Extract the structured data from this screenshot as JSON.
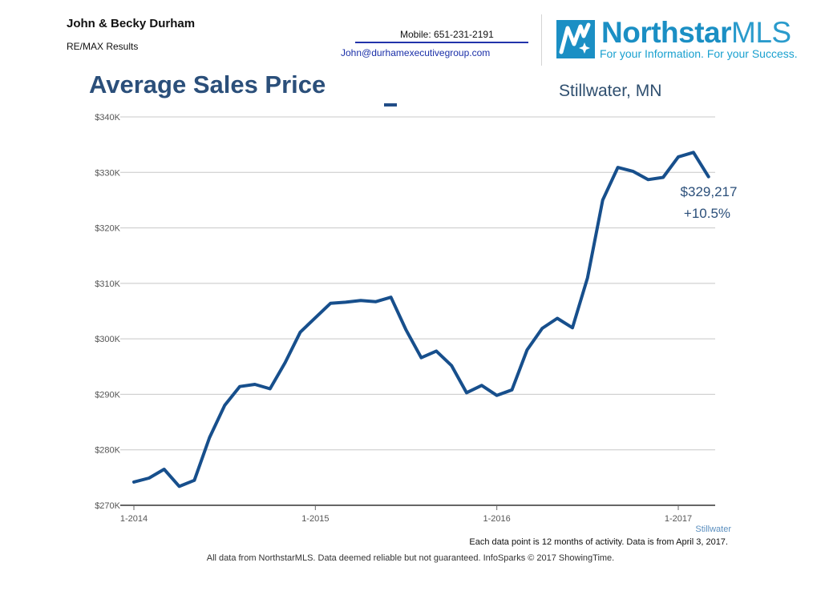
{
  "header": {
    "agent_name": "John & Becky Durham",
    "brokerage": "RE/MAX Results",
    "mobile": "Mobile: 651-231-2191",
    "email": "John@durhamexecutivegroup.com"
  },
  "logo": {
    "name_main": "Northstar",
    "name_suffix": "MLS",
    "tagline": "For your Information. For your Success."
  },
  "chart_data": {
    "type": "line",
    "title": "Average Sales Price",
    "subtitle": "Stillwater, MN",
    "ylim": [
      270000,
      340000
    ],
    "y_ticks": [
      270000,
      280000,
      290000,
      300000,
      310000,
      320000,
      330000,
      340000
    ],
    "y_tick_labels": [
      "$270K",
      "$280K",
      "$290K",
      "$300K",
      "$310K",
      "$320K",
      "$330K",
      "$340K"
    ],
    "x_tick_labels": [
      "1-2014",
      "1-2015",
      "1-2016",
      "1-2017"
    ],
    "x_tick_values": [
      "2014-01",
      "2015-01",
      "2016-01",
      "2017-01"
    ],
    "grid": true,
    "series": [
      {
        "name": "Stillwater",
        "color": "#174f8c",
        "x": [
          "2014-01",
          "2014-02",
          "2014-03",
          "2014-04",
          "2014-05",
          "2014-06",
          "2014-07",
          "2014-08",
          "2014-09",
          "2014-10",
          "2014-11",
          "2014-12",
          "2015-01",
          "2015-02",
          "2015-03",
          "2015-04",
          "2015-05",
          "2015-06",
          "2015-07",
          "2015-08",
          "2015-09",
          "2015-10",
          "2015-11",
          "2015-12",
          "2016-01",
          "2016-02",
          "2016-03",
          "2016-04",
          "2016-05",
          "2016-06",
          "2016-07",
          "2016-08",
          "2016-09",
          "2016-10",
          "2016-11",
          "2016-12",
          "2017-01",
          "2017-02",
          "2017-03"
        ],
        "values": [
          274200,
          274900,
          276500,
          273400,
          274500,
          282200,
          288000,
          291400,
          291800,
          291000,
          295700,
          301200,
          303800,
          306400,
          306600,
          306900,
          306700,
          307500,
          301600,
          296600,
          297800,
          295200,
          290300,
          291600,
          289800,
          290800,
          298000,
          301900,
          303700,
          302000,
          311000,
          325000,
          330900,
          330200,
          328700,
          329100,
          332800,
          333600,
          329217
        ]
      }
    ],
    "annotations": {
      "end_value": "$329,217",
      "end_change": "+10.5%"
    },
    "note": "Each data point is 12 months of activity. Data is from April 3, 2017."
  },
  "footer": {
    "disclaimer": "All data from NorthstarMLS. Data deemed reliable but not guaranteed. InfoSparks © 2017 ShowingTime."
  }
}
